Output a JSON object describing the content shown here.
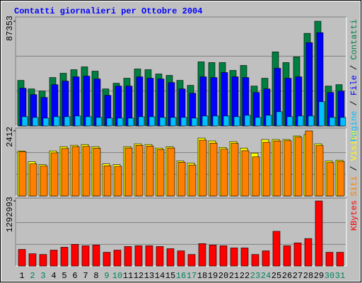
{
  "chart_data": [
    {
      "type": "bar",
      "title": "Contatti giornalieri per Ottobre 2004",
      "legend_separator": " / ",
      "ylim": [
        0,
        87353
      ],
      "yticks": [
        87353
      ],
      "series": [
        {
          "name": "Contatti",
          "color": "#008040",
          "values": [
            38016,
            30888,
            29106,
            40392,
            43956,
            46926,
            49302,
            45738,
            30888,
            35640,
            39798,
            47520,
            46926,
            43362,
            42174,
            38016,
            33858,
            53460,
            52866,
            52866,
            46332,
            50490,
            33264,
            39798,
            61776,
            52866,
            57618,
            77220,
            87353,
            33264,
            34452
          ]
        },
        {
          "name": "File",
          "color": "#0000ff",
          "values": [
            31482,
            26136,
            23760,
            34452,
            37422,
            40986,
            41580,
            39204,
            25542,
            33264,
            33264,
            40986,
            39798,
            39204,
            36234,
            30888,
            27324,
            40986,
            40392,
            44550,
            40986,
            40392,
            27918,
            30888,
            48114,
            39798,
            40986,
            69498,
            77814,
            27918,
            29106
          ]
        },
        {
          "name": "Pagine",
          "color": "#00c0ff",
          "values": [
            7722,
            7128,
            6534,
            7722,
            7722,
            8316,
            7722,
            7128,
            6534,
            6534,
            6534,
            7722,
            7722,
            7128,
            7128,
            7128,
            6534,
            8316,
            8316,
            8316,
            7722,
            8910,
            7128,
            8910,
            11880,
            7722,
            8316,
            8316,
            20196,
            7128,
            7128
          ]
        }
      ]
    },
    {
      "type": "bar",
      "legend_separator": " / ",
      "ylim": [
        0,
        2412
      ],
      "yticks": [
        2412
      ],
      "series": [
        {
          "name": "Visite",
          "color": "#ffff00",
          "values": [
            1670,
            1272,
            1166,
            1670,
            1829,
            1882,
            1908,
            1829,
            1193,
            1166,
            1829,
            1935,
            1908,
            1776,
            1829,
            1299,
            1219,
            2147,
            2041,
            1802,
            2014,
            1776,
            1590,
            2094,
            2094,
            2094,
            2226,
            2279,
            1935,
            1299,
            1325
          ]
        },
        {
          "name": "Siti",
          "color": "#ff8000",
          "values": [
            1640,
            1190,
            1110,
            1600,
            1760,
            1830,
            1840,
            1770,
            1120,
            1100,
            1780,
            1880,
            1850,
            1720,
            1780,
            1250,
            1150,
            2070,
            1960,
            1740,
            1950,
            1680,
            1450,
            1990,
            2040,
            2050,
            2180,
            2412,
            1870,
            1240,
            1280
          ]
        }
      ]
    },
    {
      "type": "bar",
      "ylim": [
        0,
        1292993
      ],
      "yticks": [
        1292993
      ],
      "categories": [
        "1",
        "2",
        "3",
        "4",
        "5",
        "6",
        "7",
        "8",
        "9",
        "10",
        "11",
        "12",
        "13",
        "14",
        "15",
        "16",
        "17",
        "18",
        "19",
        "20",
        "21",
        "22",
        "23",
        "24",
        "25",
        "26",
        "27",
        "28",
        "29",
        "30",
        "31"
      ],
      "category_colors": [
        "#000000",
        "#00805c",
        "#00805c",
        "#000000",
        "#000000",
        "#000000",
        "#000000",
        "#000000",
        "#00805c",
        "#00805c",
        "#000000",
        "#000000",
        "#000000",
        "#000000",
        "#000000",
        "#00805c",
        "#00805c",
        "#000000",
        "#000000",
        "#000000",
        "#000000",
        "#000000",
        "#00805c",
        "#00805c",
        "#000000",
        "#000000",
        "#000000",
        "#000000",
        "#000000",
        "#00805c",
        "#00805c"
      ],
      "series": [
        {
          "name": "KBytes",
          "color": "#ff0000",
          "values": [
            330441,
            244239,
            229872,
            316074,
            373542,
            431010,
            402276,
            416643,
            272973,
            316074,
            387909,
            402276,
            402276,
            387909,
            344808,
            301707,
            229872,
            445377,
            416643,
            402276,
            359175,
            359175,
            229872,
            301707,
            689616,
            402276,
            459744,
            545946,
            1292993,
            272973,
            272973
          ]
        }
      ]
    }
  ]
}
